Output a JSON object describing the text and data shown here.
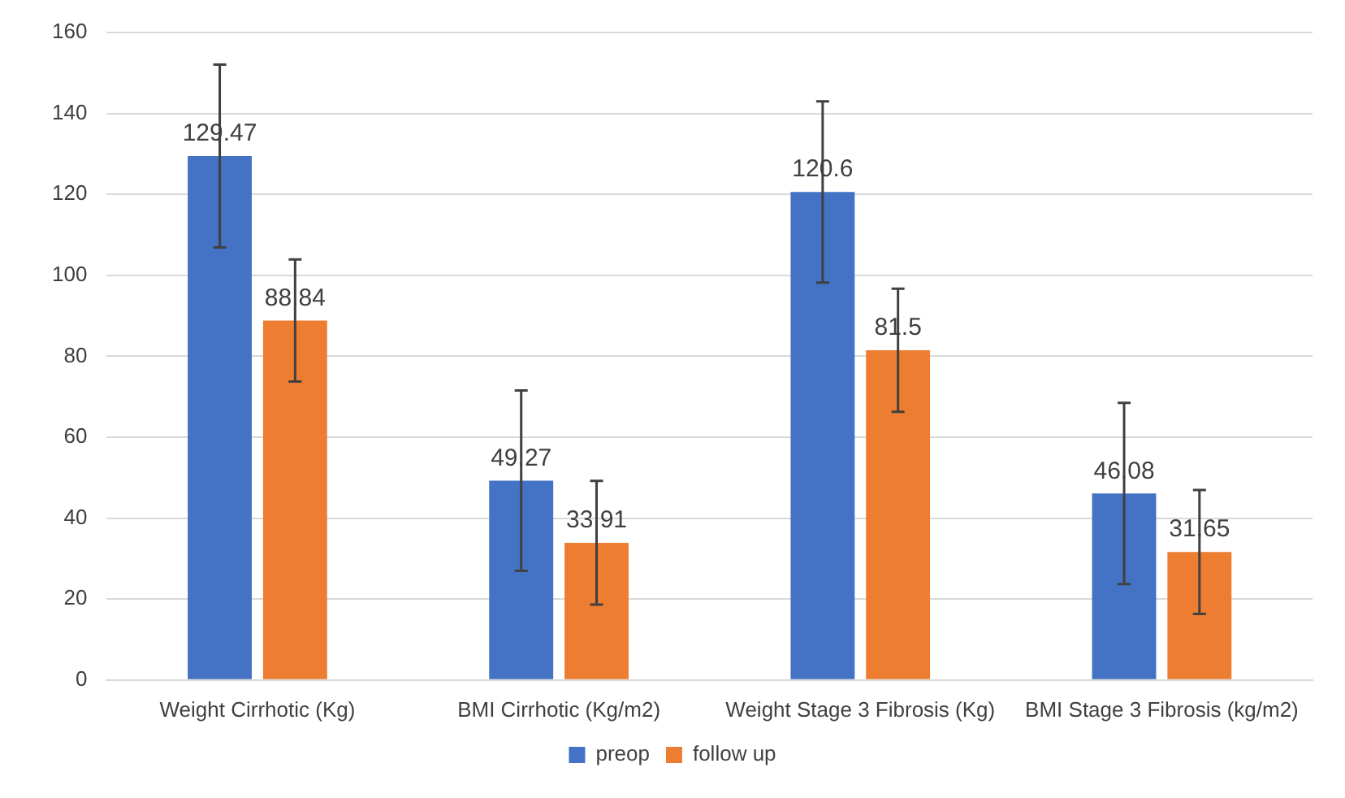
{
  "chart_data": {
    "type": "bar",
    "categories": [
      "Weight Cirrhotic (Kg)",
      "BMI Cirrhotic (Kg/m2)",
      "Weight Stage 3 Fibrosis (Kg)",
      "BMI Stage 3 Fibrosis (kg/m2)"
    ],
    "series": [
      {
        "name": "preop",
        "color": "#4472c4",
        "values": [
          129.47,
          49.27,
          120.6,
          46.08
        ],
        "errors": [
          22.6,
          22.3,
          22.4,
          22.4
        ]
      },
      {
        "name": "follow up",
        "color": "#ed7d31",
        "values": [
          88.84,
          33.91,
          81.5,
          31.65
        ],
        "errors": [
          15.1,
          15.3,
          15.2,
          15.3
        ]
      }
    ],
    "ylim": [
      0,
      160
    ],
    "yticks": [
      0,
      20,
      40,
      60,
      80,
      100,
      120,
      140,
      160
    ],
    "grid": "y",
    "legend": "bottom",
    "data_labels": true
  }
}
